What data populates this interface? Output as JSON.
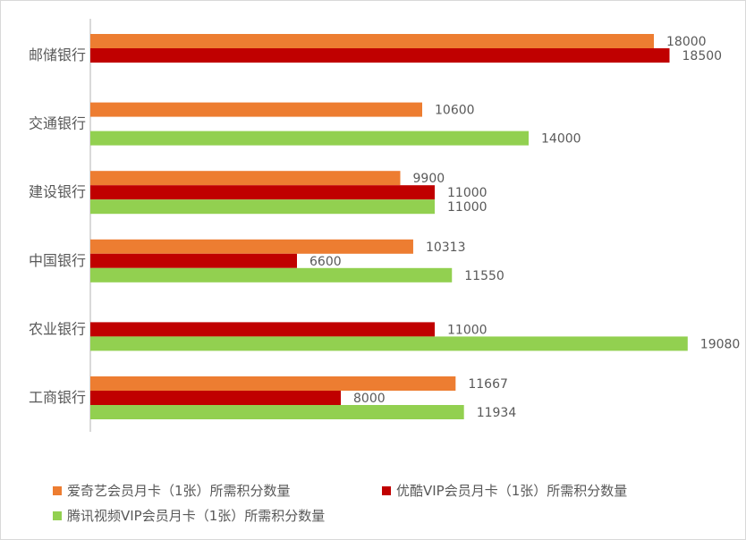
{
  "chart_data": {
    "type": "bar",
    "orientation": "horizontal",
    "categories": [
      "邮储银行",
      "交通银行",
      "建设银行",
      "中国银行",
      "农业银行",
      "工商银行"
    ],
    "series": [
      {
        "name": "爱奇艺会员月卡（1张）所需积分数量",
        "color": "#ED7D31",
        "values": [
          18000,
          10600,
          9900,
          10313,
          null,
          11667
        ]
      },
      {
        "name": "优酷VIP会员月卡（1张）所需积分数量",
        "color": "#C00000",
        "values": [
          18500,
          null,
          11000,
          6600,
          11000,
          8000
        ]
      },
      {
        "name": "腾讯视频VIP会员月卡（1张）所需积分数量",
        "color": "#92D050",
        "values": [
          null,
          14000,
          11000,
          11550,
          19080,
          11934
        ]
      }
    ],
    "xlim": [
      0,
      20000
    ],
    "xticks": [
      "0",
      "2000",
      "4000",
      "6000",
      "8000",
      "10000",
      "12000",
      "14000",
      "16000",
      "18000",
      "20000"
    ],
    "grid": false,
    "data_labels": true,
    "legend_position": "bottom"
  }
}
